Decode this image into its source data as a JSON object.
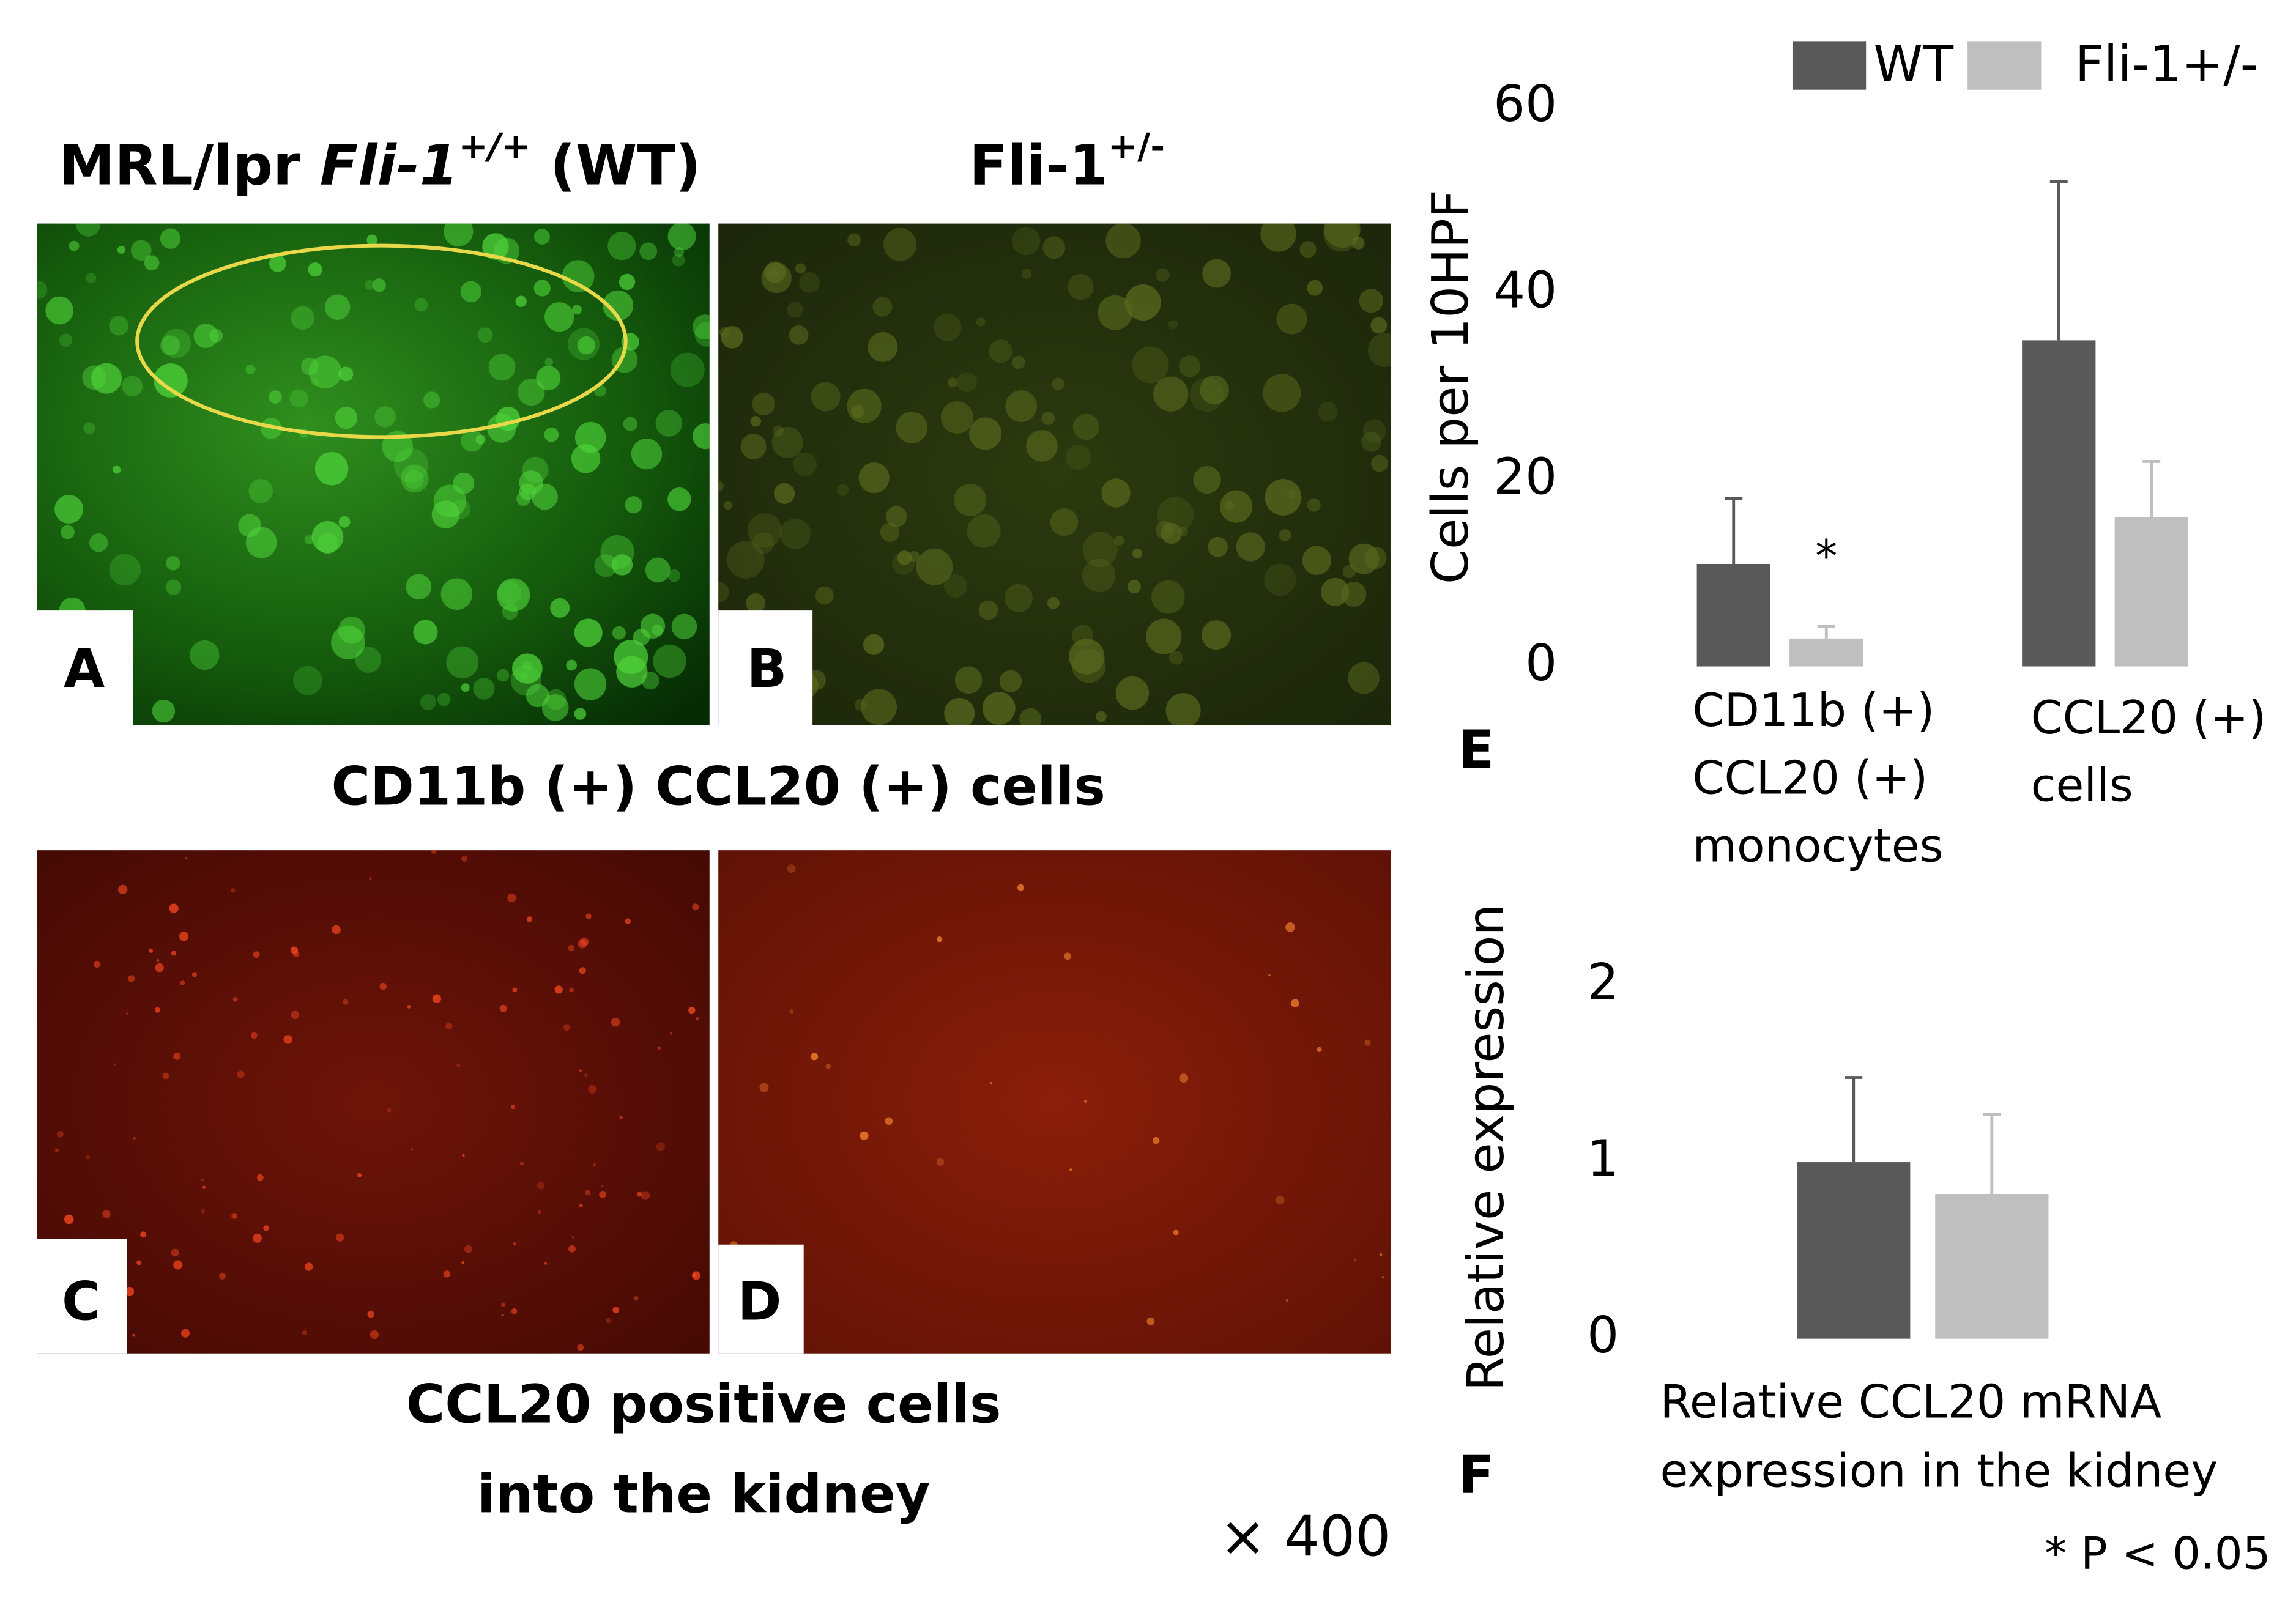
{
  "panels": {
    "wt_title": [
      "MRL/lpr ",
      "Fli-1",
      "+/+",
      " (WT)"
    ],
    "ko_title": [
      "Fli-1",
      "+/-"
    ],
    "labels": [
      "A",
      "B",
      "C",
      "D"
    ],
    "caption_top": "CD11b (+) CCL20 (+) cells",
    "caption_bottom": [
      "CCL20 positive cells",
      "into the kidney"
    ],
    "magnification": "× 400"
  },
  "chart_data": [
    {
      "type": "bar",
      "label": "E",
      "y_label": "Cells per 10HPF",
      "categories": [
        [
          "CD11b (+)",
          "CCL20 (+)",
          "monocytes"
        ],
        [
          "CCL20 (+)",
          "cells"
        ]
      ],
      "series": [
        {
          "name": "WT",
          "color": "#595959",
          "values": [
            11,
            35
          ],
          "errors": [
            7,
            17
          ]
        },
        {
          "name": "Fli-1+/-",
          "color": "#bfbfbf",
          "values": [
            3,
            16
          ],
          "errors": [
            1.3,
            6
          ]
        }
      ],
      "annotations": [
        "*"
      ],
      "ylim": [
        0,
        60
      ],
      "yticks": [
        0,
        20,
        40,
        60
      ],
      "grid": false
    },
    {
      "type": "bar",
      "label": "F",
      "y_label": "Relative expression",
      "categories": [
        [
          "Relative CCL20 mRNA",
          "expression in the kidney"
        ]
      ],
      "series": [
        {
          "name": "WT",
          "color": "#595959",
          "values": [
            1.0
          ],
          "errors": [
            0.48
          ]
        },
        {
          "name": "Fli-1+/-",
          "color": "#bfbfbf",
          "values": [
            0.82
          ],
          "errors": [
            0.45
          ]
        }
      ],
      "note": "* P < 0.05",
      "ylim": [
        0,
        2
      ],
      "yticks": [
        0,
        1,
        2
      ],
      "grid": false
    }
  ]
}
